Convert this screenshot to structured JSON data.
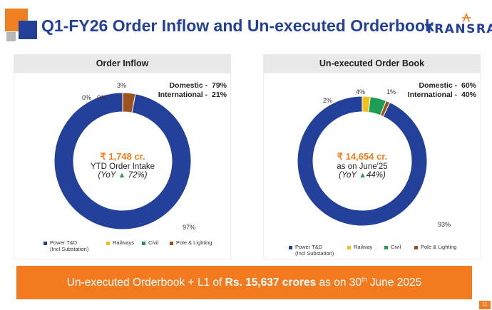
{
  "header": {
    "title": "Q1-FY26 Order Inflow and Un-executed Orderbook",
    "brand": "TRANSRAIL"
  },
  "colors": {
    "power": "#23409a",
    "railways": "#f5bf17",
    "civil": "#1f9d55",
    "pole": "#a0521c",
    "accent": "#f47a20"
  },
  "chart_data": [
    {
      "type": "pie",
      "title": "Order Inflow",
      "categories": [
        "Power T&D (Incl Substation)",
        "Railways",
        "Civil",
        "Pole & Lighting"
      ],
      "values": [
        97,
        0,
        0,
        3
      ],
      "value_labels": [
        "97%",
        "0%",
        "0%",
        "3%"
      ],
      "split": [
        {
          "label": "Domestic -",
          "value": "79%"
        },
        {
          "label": "International -",
          "value": "21%"
        }
      ],
      "center": {
        "amount": "₹ 1,748 cr.",
        "line2": "YTD Order Intake",
        "yoy_prefix": "(YoY",
        "yoy_value": "72%)"
      },
      "legend": [
        {
          "label": "Power T&D",
          "label2": "(Incl Substation)"
        },
        {
          "label": "Railways"
        },
        {
          "label": "Civil"
        },
        {
          "label": "Pole & Lighting"
        }
      ]
    },
    {
      "type": "pie",
      "title": "Un-executed Order Book",
      "categories": [
        "Power T&D (Incl Substation)",
        "Railway",
        "Civil",
        "Pole & Lighting"
      ],
      "values": [
        93,
        2,
        4,
        1
      ],
      "value_labels": [
        "93%",
        "2%",
        "4%",
        "1%"
      ],
      "split": [
        {
          "label": "Domestic -",
          "value": "60%"
        },
        {
          "label": "International -",
          "value": "40%"
        }
      ],
      "center": {
        "amount": "₹ 14,654 cr.",
        "line2": "as on June'25",
        "yoy_prefix": "(YoY",
        "yoy_value": "44%)"
      },
      "legend": [
        {
          "label": "Power T&D",
          "label2": "(Incl Substation)"
        },
        {
          "label": "Railway"
        },
        {
          "label": "Civil"
        },
        {
          "label": "Pole & Lighting"
        }
      ]
    }
  ],
  "banner": {
    "pre": "Un-executed Orderbook + L1 of",
    "amount": "Rs. 15,637",
    "crores": "crores",
    "post1": "as on 30",
    "sup": "th",
    "post2": "June 2025"
  },
  "page_number": "11"
}
